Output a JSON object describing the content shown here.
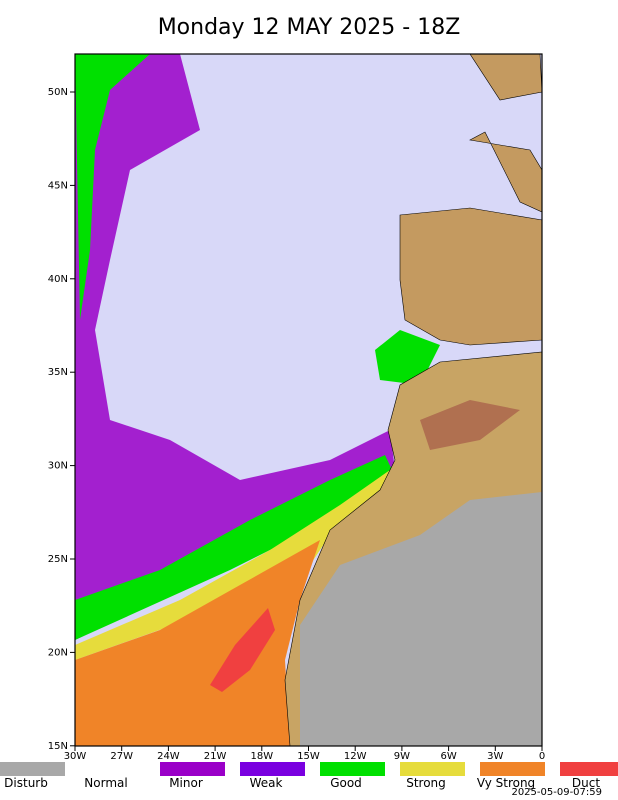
{
  "title": "Monday 12 MAY 2025 - 18Z",
  "lat_labels": [
    "50N",
    "45N",
    "40N",
    "35N",
    "30N",
    "25N",
    "20N",
    "15N"
  ],
  "lon_labels": [
    "30W",
    "27W",
    "24W",
    "21W",
    "18W",
    "15W",
    "12W",
    "9W",
    "6W",
    "3W",
    "0"
  ],
  "legend": [
    {
      "label": "Disturb",
      "color": "#a8a8a8"
    },
    {
      "label": "Normal",
      "color": "#ffffff"
    },
    {
      "label": "Minor",
      "color": "#9a00c8"
    },
    {
      "label": "Weak",
      "color": "#7a00e0"
    },
    {
      "label": "Good",
      "color": "#00e000"
    },
    {
      "label": "Strong",
      "color": "#e6dc3c"
    },
    {
      "label": "Vy Strong",
      "color": "#f08428"
    },
    {
      "label": "Duct",
      "color": "#f04040"
    }
  ],
  "timestamp": "2025-05-09-07:59"
}
